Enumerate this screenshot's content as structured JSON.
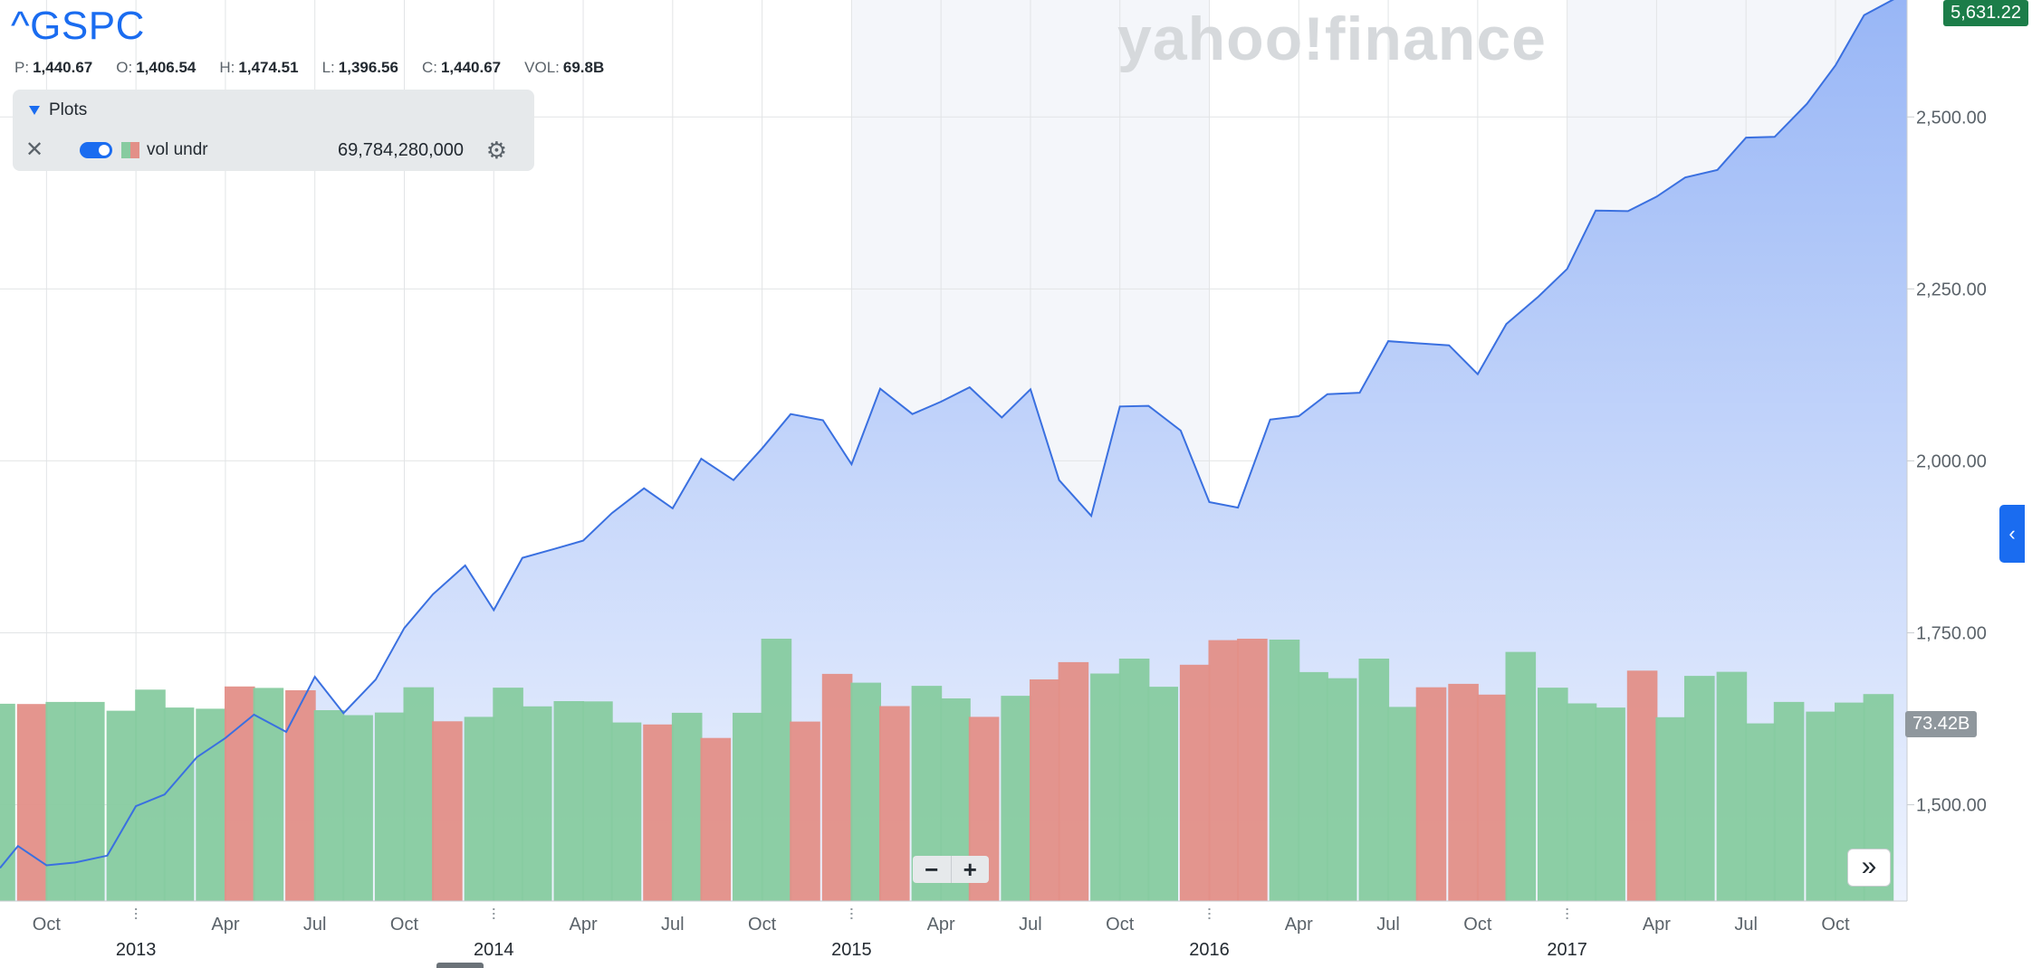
{
  "header": {
    "symbol": "^GSPC",
    "ohlc": [
      {
        "key": "P:",
        "value": "1,440.67"
      },
      {
        "key": "O:",
        "value": "1,406.54"
      },
      {
        "key": "H:",
        "value": "1,474.51"
      },
      {
        "key": "L:",
        "value": "1,396.56"
      },
      {
        "key": "C:",
        "value": "1,440.67"
      },
      {
        "key": "VOL:",
        "value": "69.8B"
      }
    ]
  },
  "plots": {
    "title": "Plots",
    "close_label": "✕",
    "item_name": "vol undr",
    "item_value": "69,784,280,000",
    "gear_label": "⚙"
  },
  "watermark": "yahoo!finance",
  "badges": {
    "last_price": "5,631.22",
    "volume": "73.42B"
  },
  "controls": {
    "zoom_out": "−",
    "zoom_in": "+",
    "scroll": "»",
    "side_tab": "‹"
  },
  "colors": {
    "line": "#3a70e0",
    "area_top": "#98b6f6",
    "area_bottom": "#eef3fe",
    "vol_up": "#87cba0",
    "vol_down": "#e38f88",
    "grid": "#e2e4e6",
    "shade": "#f4f6fa",
    "label": "#5b636a",
    "year_label": "#232a31"
  },
  "chart_data": {
    "type": "line",
    "title": "^GSPC",
    "ylim": [
      1360,
      2670
    ],
    "y_ticks": [
      1500,
      1750,
      2000,
      2250,
      2500
    ],
    "y_tick_labels": [
      "1,500.00",
      "1,750.00",
      "2,000.00",
      "2,250.00",
      "2,500.00"
    ],
    "x_range": [
      2012.62,
      2017.95
    ],
    "month_ticks": [
      {
        "x": 2012.75,
        "label": "Oct"
      },
      {
        "x": 2013.25,
        "label": "Apr"
      },
      {
        "x": 2013.5,
        "label": "Jul"
      },
      {
        "x": 2013.75,
        "label": "Oct"
      },
      {
        "x": 2014.25,
        "label": "Apr"
      },
      {
        "x": 2014.5,
        "label": "Jul"
      },
      {
        "x": 2014.75,
        "label": "Oct"
      },
      {
        "x": 2015.25,
        "label": "Apr"
      },
      {
        "x": 2015.5,
        "label": "Jul"
      },
      {
        "x": 2015.75,
        "label": "Oct"
      },
      {
        "x": 2016.25,
        "label": "Apr"
      },
      {
        "x": 2016.5,
        "label": "Jul"
      },
      {
        "x": 2016.75,
        "label": "Oct"
      },
      {
        "x": 2017.25,
        "label": "Apr"
      },
      {
        "x": 2017.5,
        "label": "Jul"
      },
      {
        "x": 2017.75,
        "label": "Oct"
      }
    ],
    "year_ticks": [
      {
        "x": 2013.0,
        "label": "2013"
      },
      {
        "x": 2014.0,
        "label": "2014"
      },
      {
        "x": 2015.0,
        "label": "2015"
      },
      {
        "x": 2016.0,
        "label": "2016"
      },
      {
        "x": 2017.0,
        "label": "2017"
      }
    ],
    "shaded_ranges": [
      [
        2015.0,
        2016.0
      ],
      [
        2017.0,
        2017.95
      ]
    ],
    "series": [
      {
        "name": "^GSPC close",
        "x": [
          2012.62,
          2012.67,
          2012.75,
          2012.83,
          2012.92,
          2013.0,
          2013.08,
          2013.17,
          2013.25,
          2013.33,
          2013.42,
          2013.5,
          2013.58,
          2013.67,
          2013.75,
          2013.83,
          2013.92,
          2014.0,
          2014.08,
          2014.17,
          2014.25,
          2014.33,
          2014.42,
          2014.5,
          2014.58,
          2014.67,
          2014.75,
          2014.83,
          2014.92,
          2015.0,
          2015.08,
          2015.17,
          2015.25,
          2015.33,
          2015.42,
          2015.5,
          2015.58,
          2015.67,
          2015.75,
          2015.83,
          2015.92,
          2016.0,
          2016.08,
          2016.17,
          2016.25,
          2016.33,
          2016.42,
          2016.5,
          2016.58,
          2016.67,
          2016.75,
          2016.83,
          2016.92,
          2017.0,
          2017.08,
          2017.17,
          2017.25,
          2017.33,
          2017.42,
          2017.5,
          2017.58,
          2017.67,
          2017.75,
          2017.83,
          2017.92,
          2017.95
        ],
        "values": [
          1408,
          1440,
          1412,
          1416,
          1426,
          1498,
          1515,
          1569,
          1597,
          1631,
          1606,
          1686,
          1633,
          1682,
          1757,
          1806,
          1848,
          1783,
          1859,
          1872,
          1884,
          1924,
          1960,
          1931,
          2003,
          1972,
          2018,
          2068,
          2059,
          1995,
          2105,
          2068,
          2086,
          2107,
          2063,
          2104,
          1972,
          1920,
          2079,
          2080,
          2044,
          1940,
          1932,
          2060,
          2065,
          2097,
          2099,
          2174,
          2171,
          2168,
          2126,
          2199,
          2239,
          2279,
          2364,
          2363,
          2384,
          2412,
          2423,
          2470,
          2471,
          2519,
          2575,
          2648,
          2673,
          2673
        ]
      }
    ],
    "volume": {
      "name": "vol undr",
      "x": [
        2012.62,
        2012.71,
        2012.79,
        2012.87,
        2012.96,
        2013.04,
        2013.12,
        2013.21,
        2013.29,
        2013.37,
        2013.46,
        2013.54,
        2013.62,
        2013.71,
        2013.79,
        2013.87,
        2013.96,
        2014.04,
        2014.12,
        2014.21,
        2014.29,
        2014.37,
        2014.46,
        2014.54,
        2014.62,
        2014.71,
        2014.79,
        2014.87,
        2014.96,
        2015.04,
        2015.12,
        2015.21,
        2015.29,
        2015.37,
        2015.46,
        2015.54,
        2015.62,
        2015.71,
        2015.79,
        2015.87,
        2015.96,
        2016.04,
        2016.12,
        2016.21,
        2016.29,
        2016.37,
        2016.46,
        2016.54,
        2016.62,
        2016.71,
        2016.79,
        2016.87,
        2016.96,
        2017.04,
        2017.12,
        2017.21,
        2017.29,
        2017.37,
        2017.46,
        2017.54,
        2017.62,
        2017.71,
        2017.79,
        2017.87
      ],
      "values": [
        67.4,
        67.3,
        68.0,
        68.0,
        65.0,
        72.2,
        66.1,
        65.7,
        73.3,
        72.8,
        72.0,
        65.2,
        63.5,
        64.4,
        73.0,
        61.4,
        62.9,
        72.9,
        66.5,
        68.3,
        68.2,
        61.0,
        60.3,
        64.3,
        55.7,
        64.3,
        89.6,
        61.3,
        77.6,
        74.6,
        66.6,
        73.5,
        69.2,
        62.9,
        70.1,
        75.7,
        81.6,
        77.7,
        82.8,
        73.2,
        80.7,
        89.1,
        89.6,
        89.3,
        78.2,
        76.1,
        82.8,
        66.3,
        73.0,
        74.2,
        70.5,
        85.1,
        72.9,
        67.5,
        66.1,
        78.7,
        62.8,
        76.9,
        78.3,
        60.7,
        68.0,
        64.7,
        67.8,
        70.7
      ],
      "up": [
        true,
        false,
        true,
        true,
        true,
        true,
        true,
        true,
        false,
        true,
        false,
        true,
        true,
        true,
        true,
        false,
        true,
        true,
        true,
        true,
        true,
        true,
        false,
        true,
        false,
        true,
        true,
        false,
        false,
        true,
        false,
        true,
        true,
        false,
        true,
        false,
        false,
        true,
        true,
        true,
        false,
        false,
        false,
        true,
        true,
        true,
        true,
        true,
        false,
        false,
        false,
        true,
        true,
        true,
        true,
        false,
        true,
        true,
        true,
        true,
        true,
        true,
        true,
        true
      ],
      "ylim": [
        0,
        110
      ]
    }
  }
}
